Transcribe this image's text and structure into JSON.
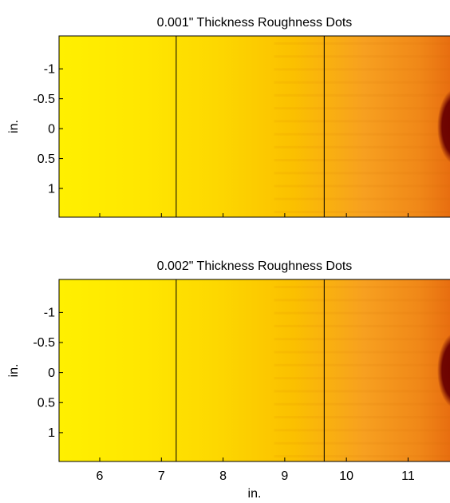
{
  "chart_data": [
    {
      "type": "image",
      "title": "0.001\" Thickness Roughness Dots",
      "ylabel": "in.",
      "xlim": [
        5.34,
        11.68
      ],
      "ylim": [
        -1.55,
        1.48
      ],
      "y_inverted": true,
      "xticks": [
        6,
        7,
        8,
        9,
        10,
        11
      ],
      "yticks": [
        -1,
        -0.5,
        0,
        0.5,
        1
      ],
      "show_xtick_labels": false,
      "markers_x": [
        7.24,
        9.64
      ],
      "marker_color": "#000000",
      "colormap": [
        "#fff000",
        "#ffe600",
        "#fdd800",
        "#fbc000",
        "#f7a020",
        "#f08818",
        "#e86e10"
      ],
      "spot_color": "#6a0000"
    },
    {
      "type": "image",
      "title": "0.002\" Thickness Roughness Dots",
      "ylabel": "in.",
      "xlabel": "in.",
      "xlim": [
        5.34,
        11.68
      ],
      "ylim": [
        -1.55,
        1.48
      ],
      "y_inverted": true,
      "xticks": [
        6,
        7,
        8,
        9,
        10,
        11
      ],
      "yticks": [
        -1,
        -0.5,
        0,
        0.5,
        1
      ],
      "show_xtick_labels": true,
      "markers_x": [
        7.24,
        9.64
      ],
      "marker_color": "#000000",
      "colormap": [
        "#fff000",
        "#ffe600",
        "#fdd800",
        "#fbc000",
        "#f7a020",
        "#f08818",
        "#e86e10"
      ],
      "spot_color": "#6a0000"
    }
  ]
}
